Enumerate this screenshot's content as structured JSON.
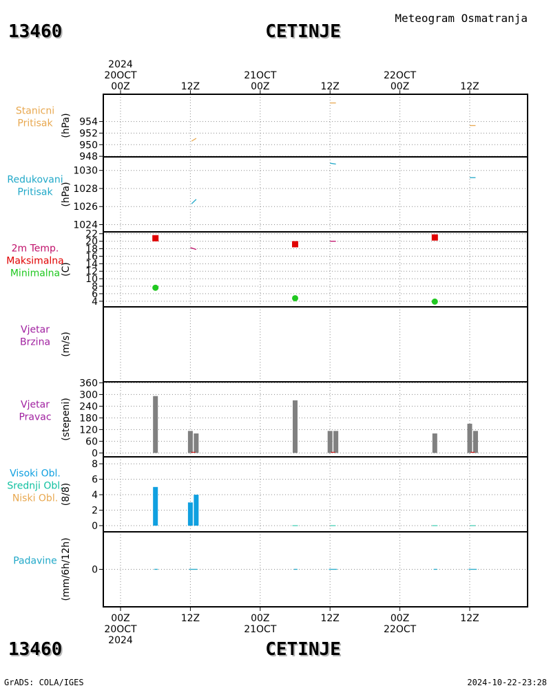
{
  "header": {
    "station_id": "13460",
    "station_name": "CETINJE",
    "title": "Meteogram Osmatranja"
  },
  "time_axis": {
    "top_labels": [
      {
        "hour": 0,
        "lines": [
          "2024",
          "20OCT",
          "00Z"
        ]
      },
      {
        "hour": 12,
        "lines": [
          "12Z"
        ]
      },
      {
        "hour": 24,
        "lines": [
          "21OCT",
          "00Z"
        ]
      },
      {
        "hour": 36,
        "lines": [
          "12Z"
        ]
      },
      {
        "hour": 48,
        "lines": [
          "22OCT",
          "00Z"
        ]
      },
      {
        "hour": 60,
        "lines": [
          "12Z"
        ]
      }
    ],
    "bottom_labels": [
      {
        "hour": 0,
        "lines": [
          "00Z",
          "20OCT",
          "2024"
        ]
      },
      {
        "hour": 12,
        "lines": [
          "12Z"
        ]
      },
      {
        "hour": 24,
        "lines": [
          "00Z",
          "21OCT"
        ]
      },
      {
        "hour": 36,
        "lines": [
          "12Z"
        ]
      },
      {
        "hour": 48,
        "lines": [
          "00Z",
          "22OCT"
        ]
      },
      {
        "hour": 60,
        "lines": [
          "12Z"
        ]
      }
    ]
  },
  "colors": {
    "station_pressure": "#e8a850",
    "reduced_pressure": "#20a8c8",
    "tmax": "#e00000",
    "tmin": "#20c820",
    "temp_line": "#c0106a",
    "wind": "#a020a0",
    "bars": "#808080",
    "cloud_high": "#10a0e0",
    "cloud_mid": "#10c0a0",
    "cloud_low": "#e8a850",
    "precip": "#20a8c8"
  },
  "footer": {
    "left": "GrADS: COLA/IGES",
    "right": "2024-10-22-23:28"
  },
  "chart_data": [
    {
      "type": "line",
      "panel_labels": [
        {
          "text": "Stanicni",
          "color": "station_pressure"
        },
        {
          "text": "Pritisak",
          "color": "station_pressure"
        }
      ],
      "ylabel": "(hPa)",
      "yticks": [
        948,
        950,
        952,
        954
      ],
      "ylim": [
        947.9,
        958.7
      ],
      "dashes": [
        {
          "x1": 12.2,
          "y1": 950.6,
          "x2": 13.0,
          "y2": 951.1
        },
        {
          "x1": 36.0,
          "y1": 957.2,
          "x2": 37.0,
          "y2": 957.2
        },
        {
          "x1": 60.0,
          "y1": 953.3,
          "x2": 61.0,
          "y2": 953.3
        }
      ]
    },
    {
      "type": "line",
      "panel_labels": [
        {
          "text": "Redukovani",
          "color": "reduced_pressure"
        },
        {
          "text": "Pritisak",
          "color": "reduced_pressure"
        }
      ],
      "ylabel": "(hPa)",
      "yticks": [
        1024,
        1026,
        1028,
        1030
      ],
      "ylim": [
        1023.2,
        1031.5
      ],
      "dashes": [
        {
          "x1": 12.2,
          "y1": 1026.3,
          "x2": 13.0,
          "y2": 1026.8
        },
        {
          "x1": 36.0,
          "y1": 1030.8,
          "x2": 37.0,
          "y2": 1030.7
        },
        {
          "x1": 60.0,
          "y1": 1029.2,
          "x2": 61.0,
          "y2": 1029.2
        }
      ]
    },
    {
      "type": "scatter",
      "panel_labels": [
        {
          "text": "2m Temp.",
          "color": "temp_line"
        },
        {
          "text": "Maksimalna",
          "color": "tmax"
        },
        {
          "text": "Minimalna",
          "color": "tmin"
        }
      ],
      "ylabel": "(C)",
      "yticks": [
        4,
        6,
        8,
        10,
        12,
        14,
        16,
        18,
        20,
        22
      ],
      "ylim": [
        2.5,
        22.5
      ],
      "series": [
        {
          "name": "Maksimalna",
          "color": "tmax",
          "marker": "square",
          "x": [
            6,
            30,
            54
          ],
          "y": [
            20.8,
            19.2,
            21.0
          ]
        },
        {
          "name": "Minimalna",
          "color": "tmin",
          "marker": "circle",
          "x": [
            6,
            30,
            54
          ],
          "y": [
            7.6,
            4.8,
            3.9
          ]
        }
      ],
      "dashes": [
        {
          "x1": 12.0,
          "y1": 18.3,
          "x2": 13.0,
          "y2": 17.8
        },
        {
          "x1": 36.0,
          "y1": 20.0,
          "x2": 37.0,
          "y2": 20.0
        }
      ]
    },
    {
      "type": "line",
      "panel_labels": [
        {
          "text": "Vjetar",
          "color": "wind"
        },
        {
          "text": "Brzina",
          "color": "wind"
        }
      ],
      "ylabel": "(m/s)",
      "yticks": [],
      "ylim": [
        0,
        1
      ]
    },
    {
      "type": "bar",
      "panel_labels": [
        {
          "text": "Vjetar",
          "color": "wind"
        },
        {
          "text": "Pravac",
          "color": "wind"
        }
      ],
      "ylabel": "(stepeni)",
      "yticks": [
        0,
        60,
        120,
        180,
        240,
        300,
        360
      ],
      "ylim": [
        -20,
        365
      ],
      "x": [
        6,
        12,
        13,
        30,
        36,
        37,
        54,
        60,
        61
      ],
      "values": [
        292,
        113,
        100,
        270,
        113,
        113,
        100,
        150,
        113
      ]
    },
    {
      "type": "bar",
      "panel_labels": [
        {
          "text": "Visoki Obl.",
          "color": "cloud_high"
        },
        {
          "text": "Srednji Obl.",
          "color": "cloud_mid"
        },
        {
          "text": "Niski Obl.",
          "color": "cloud_low"
        }
      ],
      "ylabel": "(8/8)",
      "yticks": [
        0,
        2,
        4,
        6,
        8
      ],
      "ylim": [
        -0.8,
        8.9
      ],
      "x": [
        6,
        12,
        13
      ],
      "values": [
        5,
        3,
        4
      ]
    },
    {
      "type": "line",
      "panel_labels": [
        {
          "text": "Padavine",
          "color": "precip"
        }
      ],
      "ylabel": "(mm/6h/12h)",
      "yticks": [
        0
      ],
      "ylim": [
        -5,
        5
      ],
      "dashes": [
        {
          "x1": 5.8,
          "y1": 0,
          "x2": 6.4,
          "y2": 0
        },
        {
          "x1": 11.8,
          "y1": 0,
          "x2": 13.2,
          "y2": 0
        },
        {
          "x1": 29.8,
          "y1": 0,
          "x2": 30.4,
          "y2": 0
        },
        {
          "x1": 35.8,
          "y1": 0,
          "x2": 37.2,
          "y2": 0
        },
        {
          "x1": 53.8,
          "y1": 0,
          "x2": 54.4,
          "y2": 0
        },
        {
          "x1": 59.8,
          "y1": 0,
          "x2": 61.2,
          "y2": 0
        }
      ]
    }
  ]
}
